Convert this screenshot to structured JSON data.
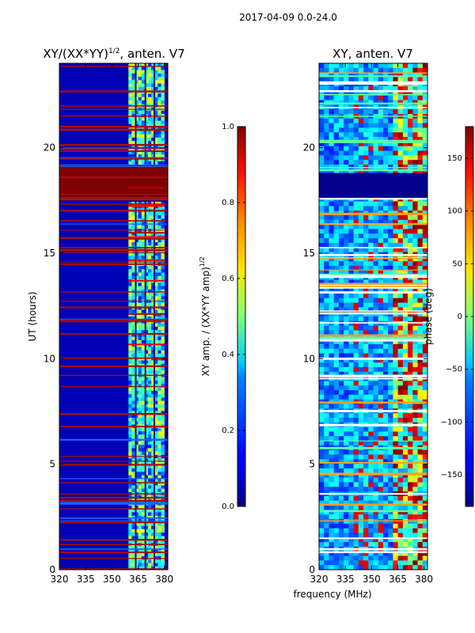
{
  "figure_title": "2017-04-09 0.0-24.0",
  "chart_data": [
    {
      "type": "heatmap",
      "title_main": "XY/(XX*YY)",
      "title_sup": "1/2",
      "title_rest": ", anten. V7",
      "xlabel": "",
      "ylabel": "UT (hours)",
      "x_ticks": [
        "320",
        "335",
        "350",
        "365",
        "380"
      ],
      "x_tick_values": [
        320,
        335,
        350,
        365,
        380
      ],
      "y_ticks": [
        "0",
        "5",
        "10",
        "15",
        "20"
      ],
      "y_tick_values": [
        0,
        5,
        10,
        15,
        20
      ],
      "xlim": [
        320,
        382
      ],
      "ylim": [
        0,
        24
      ],
      "saturated_band_hours": [
        17.5,
        19.2
      ],
      "active_band_mhz": [
        359.5,
        380
      ],
      "colorbar": {
        "label_main": "XY amp. / (XX*YY amp)",
        "label_sup": "1/2",
        "ticks": [
          "0.0",
          "0.2",
          "0.4",
          "0.6",
          "0.8",
          "1.0"
        ],
        "tick_values": [
          0.0,
          0.2,
          0.4,
          0.6,
          0.8,
          1.0
        ],
        "range": [
          0,
          1
        ]
      }
    },
    {
      "type": "heatmap",
      "title": "XY, anten. V7",
      "xlabel": "frequency (MHz)",
      "ylabel": "",
      "x_ticks": [
        "320",
        "335",
        "350",
        "365",
        "380"
      ],
      "x_tick_values": [
        320,
        335,
        350,
        365,
        380
      ],
      "y_ticks": [
        "0",
        "5",
        "10",
        "15",
        "20"
      ],
      "y_tick_values": [
        0,
        5,
        10,
        15,
        20
      ],
      "xlim": [
        320,
        382
      ],
      "ylim": [
        0,
        24
      ],
      "blank_band_hours": [
        17.6,
        18.8
      ],
      "colorbar": {
        "label": "phase (deg)",
        "ticks": [
          "−150",
          "−100",
          "−50",
          "0",
          "50",
          "100",
          "150"
        ],
        "tick_values": [
          -150,
          -100,
          -50,
          0,
          50,
          100,
          150
        ],
        "range": [
          -180,
          180
        ]
      }
    }
  ]
}
